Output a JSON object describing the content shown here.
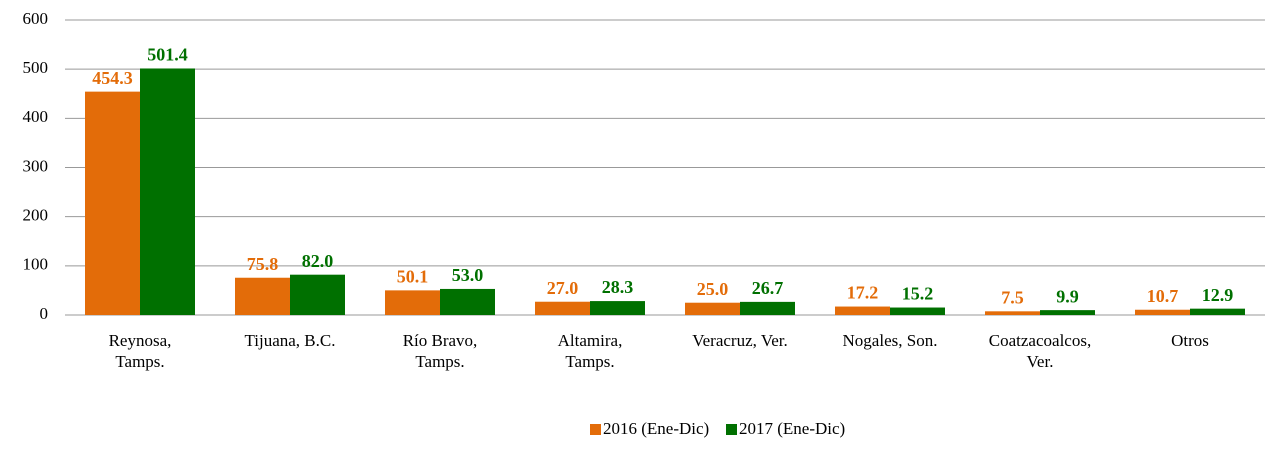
{
  "chart_data": {
    "type": "bar",
    "categories": [
      "Reynosa,\nTamps.",
      "Tijuana, B.C.",
      "Río Bravo,\nTamps.",
      "Altamira,\nTamps.",
      "Veracruz, Ver.",
      "Nogales, Son.",
      "Coatzacoalcos,\nVer.",
      "Otros"
    ],
    "series": [
      {
        "name": "2016 (Ene-Dic)",
        "color": "#e36c09",
        "values": [
          454.3,
          75.8,
          50.1,
          27.0,
          25.0,
          17.2,
          7.5,
          10.7
        ],
        "value_labels": [
          "454.3",
          "75.8",
          "50.1",
          "27.0",
          "25.0",
          "17.2",
          "7.5",
          "10.7"
        ]
      },
      {
        "name": "2017 (Ene-Dic)",
        "color": "#007000",
        "values": [
          501.4,
          82.0,
          53.0,
          28.3,
          26.7,
          15.2,
          9.9,
          12.9
        ],
        "value_labels": [
          "501.4",
          "82.0",
          "53.0",
          "28.3",
          "26.7",
          "15.2",
          "9.9",
          "12.9"
        ]
      }
    ],
    "ylim": [
      0,
      600
    ],
    "yticks": [
      0,
      100,
      200,
      300,
      400,
      500,
      600
    ],
    "grid": true,
    "legend": "bottom"
  }
}
